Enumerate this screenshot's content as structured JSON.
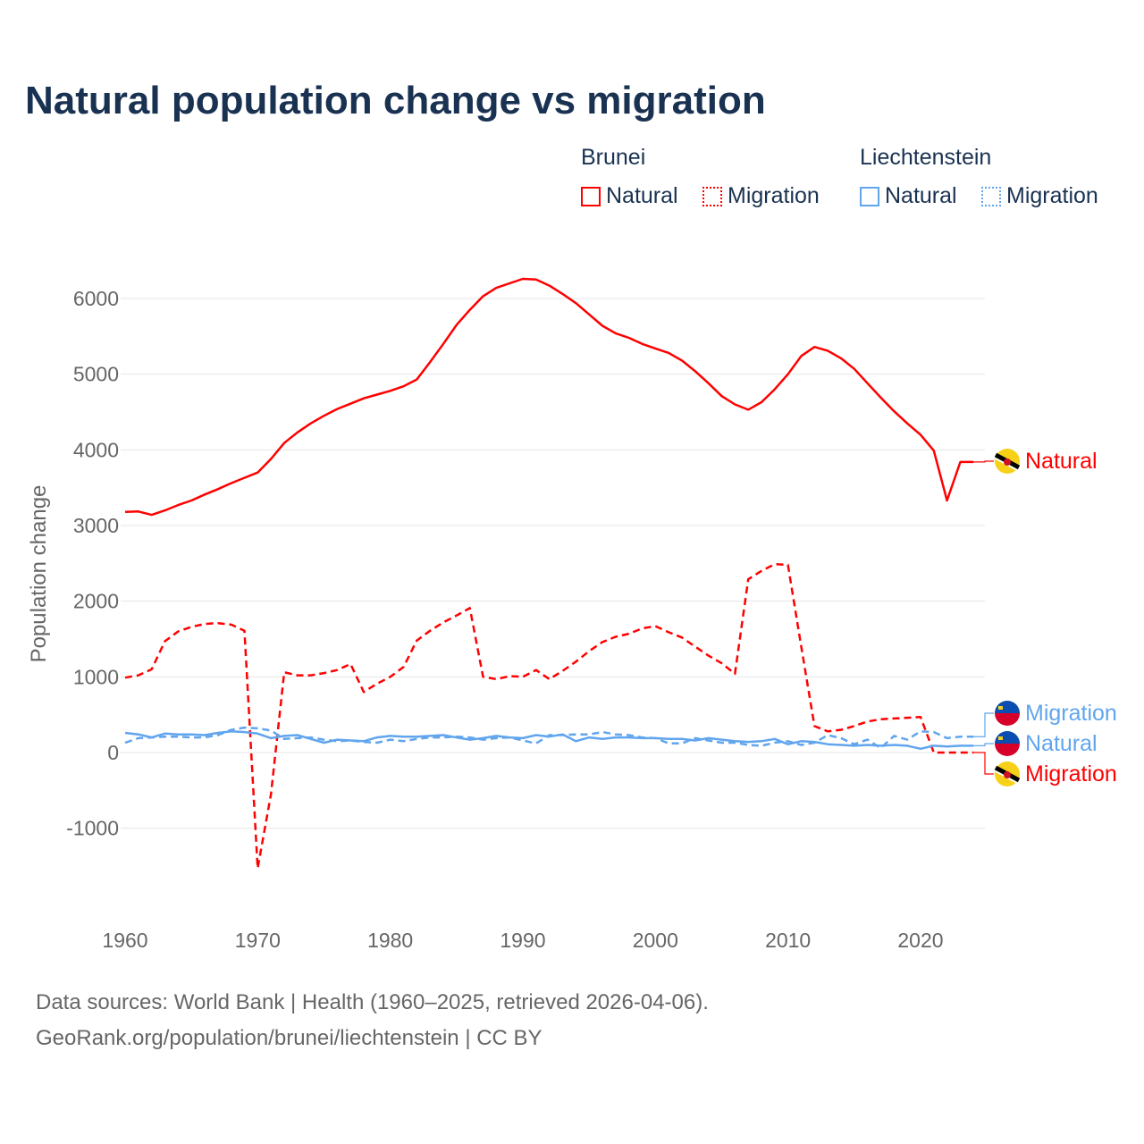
{
  "title": "Natural population change vs migration",
  "legend": {
    "groups": [
      {
        "name": "Brunei",
        "color": "#ff0000",
        "items": [
          "Natural",
          "Migration"
        ]
      },
      {
        "name": "Liechtenstein",
        "color": "#60a5ee",
        "items": [
          "Natural",
          "Migration"
        ]
      }
    ]
  },
  "footer": {
    "line1": "Data sources: World Bank | Health (1960–2025, retrieved 2026-04-06).",
    "line2": "GeoRank.org/population/brunei/liechtenstein | CC BY"
  },
  "chart_data": {
    "type": "line",
    "title": "Natural population change vs migration",
    "xlabel": "",
    "ylabel": "Population change",
    "xlim": [
      1960,
      2025
    ],
    "ylim": [
      -1500,
      6500
    ],
    "xticks": [
      1960,
      1970,
      1980,
      1990,
      2000,
      2010,
      2020
    ],
    "yticks": [
      -1000,
      0,
      1000,
      2000,
      3000,
      4000,
      5000,
      6000
    ],
    "x_start": 1960,
    "grid": true,
    "series": [
      {
        "name": "Brunei Natural",
        "label": "Natural",
        "color": "#ff0000",
        "dash": false,
        "values": [
          3180,
          3185,
          3140,
          3200,
          3270,
          3330,
          3410,
          3480,
          3560,
          3630,
          3700,
          3880,
          4090,
          4230,
          4350,
          4450,
          4540,
          4610,
          4680,
          4730,
          4780,
          4840,
          4930,
          5160,
          5400,
          5650,
          5850,
          6030,
          6140,
          6200,
          6260,
          6250,
          6170,
          6060,
          5940,
          5790,
          5640,
          5540,
          5480,
          5400,
          5340,
          5280,
          5180,
          5040,
          4880,
          4710,
          4600,
          4530,
          4630,
          4800,
          5000,
          5240,
          5360,
          5310,
          5210,
          5070,
          4880,
          4690,
          4510,
          4350,
          4200,
          3990,
          3330,
          3840,
          3840
        ]
      },
      {
        "name": "Brunei Migration",
        "label": "Migration",
        "color": "#ff0000",
        "dash": true,
        "values": [
          990,
          1020,
          1100,
          1470,
          1600,
          1660,
          1700,
          1710,
          1690,
          1610,
          -1530,
          -550,
          1060,
          1020,
          1020,
          1050,
          1090,
          1170,
          800,
          910,
          1000,
          1130,
          1480,
          1610,
          1720,
          1810,
          1910,
          1000,
          970,
          1010,
          1000,
          1090,
          970,
          1080,
          1200,
          1340,
          1460,
          1530,
          1570,
          1640,
          1670,
          1590,
          1520,
          1400,
          1280,
          1180,
          1040,
          2290,
          2400,
          2490,
          2480,
          1400,
          350,
          280,
          300,
          350,
          410,
          440,
          450,
          460,
          470,
          0,
          0,
          0,
          0
        ]
      },
      {
        "name": "Liechtenstein Natural",
        "label": "Natural",
        "color": "#60a5ee",
        "dash": false,
        "values": [
          260,
          240,
          200,
          250,
          240,
          240,
          230,
          260,
          280,
          270,
          250,
          190,
          220,
          230,
          180,
          130,
          170,
          160,
          150,
          200,
          220,
          210,
          210,
          220,
          230,
          200,
          170,
          190,
          220,
          200,
          190,
          230,
          210,
          240,
          150,
          200,
          180,
          200,
          200,
          190,
          190,
          180,
          180,
          160,
          190,
          170,
          150,
          140,
          150,
          180,
          110,
          150,
          140,
          110,
          100,
          90,
          100,
          90,
          100,
          90,
          50,
          90,
          80,
          90,
          90
        ]
      },
      {
        "name": "Liechtenstein Migration",
        "label": "Migration",
        "color": "#60a5ee",
        "dash": true,
        "values": [
          130,
          190,
          200,
          210,
          210,
          200,
          200,
          230,
          300,
          330,
          320,
          290,
          180,
          190,
          200,
          170,
          150,
          160,
          140,
          130,
          170,
          150,
          180,
          200,
          200,
          210,
          200,
          170,
          190,
          200,
          160,
          120,
          230,
          230,
          240,
          240,
          270,
          240,
          230,
          200,
          190,
          120,
          120,
          190,
          160,
          130,
          130,
          100,
          90,
          130,
          150,
          100,
          130,
          230,
          190,
          110,
          170,
          60,
          220,
          170,
          280,
          270,
          190,
          210,
          210
        ]
      }
    ]
  }
}
